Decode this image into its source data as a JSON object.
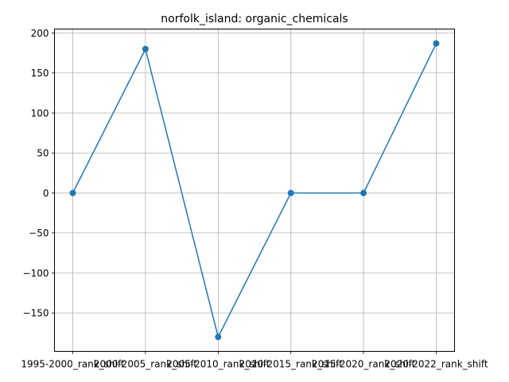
{
  "chart_data": {
    "type": "line",
    "title": "norfolk_island: organic_chemicals",
    "xlabel": "",
    "ylabel": "",
    "categories": [
      "1995-2000_rank_shift",
      "2000-2005_rank_shift",
      "2005-2010_rank_shift",
      "2010-2015_rank_shift",
      "2015-2020_rank_shift",
      "2020-2022_rank_shift"
    ],
    "series": [
      {
        "values": [
          0,
          180,
          -180,
          0,
          0,
          187
        ],
        "color": "#1f77b4"
      }
    ],
    "ylim": [
      -198,
      205
    ],
    "yticks": [
      -150,
      -100,
      -50,
      0,
      50,
      100,
      150,
      200
    ],
    "ytick_labels": [
      "−150",
      "−100",
      "−50",
      "0",
      "50",
      "100",
      "150",
      "200"
    ],
    "grid": true,
    "marker": "circle"
  }
}
